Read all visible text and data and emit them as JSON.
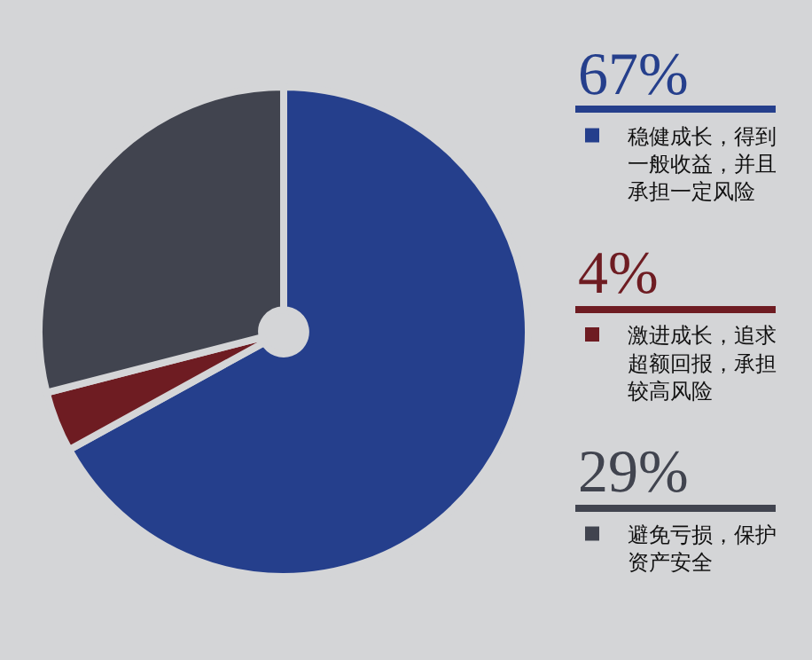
{
  "chart_data": {
    "type": "pie",
    "categories": [
      "稳健成长，得到一般收益，并且承担一定风险",
      "激进成长，追求超额回报，承担较高风险",
      "避免亏损，保护资产安全"
    ],
    "values": [
      67,
      4,
      29
    ],
    "colors": [
      "#253f8c",
      "#6e1c22",
      "#41444f"
    ],
    "value_labels": [
      "67%",
      "4%",
      "29%"
    ],
    "legend": "right"
  }
}
